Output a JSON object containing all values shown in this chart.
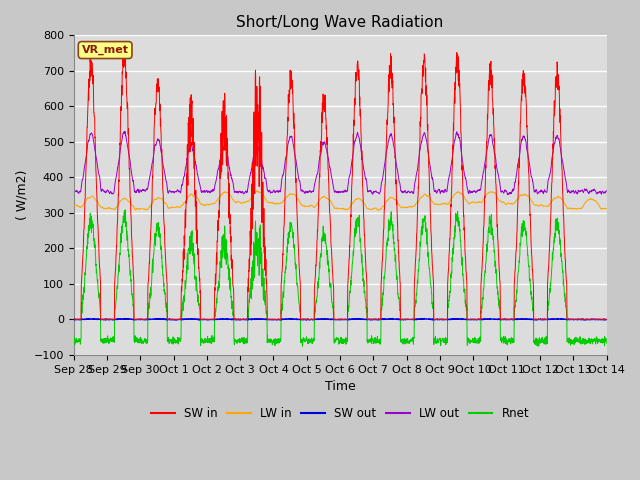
{
  "title": "Short/Long Wave Radiation",
  "xlabel": "Time",
  "ylabel": "( W/m2)",
  "ylim": [
    -100,
    800
  ],
  "yticks": [
    -100,
    0,
    100,
    200,
    300,
    400,
    500,
    600,
    700,
    800
  ],
  "num_days": 16,
  "points_per_day": 144,
  "colors": {
    "SW_in": "#FF0000",
    "LW_in": "#FFA500",
    "SW_out": "#0000DD",
    "LW_out": "#9900CC",
    "Rnet": "#00CC00"
  },
  "legend_labels": [
    "SW in",
    "LW in",
    "SW out",
    "LW out",
    "Rnet"
  ],
  "station_label": "VR_met",
  "background_color": "#D8D8D8",
  "plot_bg_color": "#DCDCDC",
  "grid_color": "#FFFFFF",
  "title_fontsize": 11,
  "label_fontsize": 9,
  "tick_fontsize": 8
}
